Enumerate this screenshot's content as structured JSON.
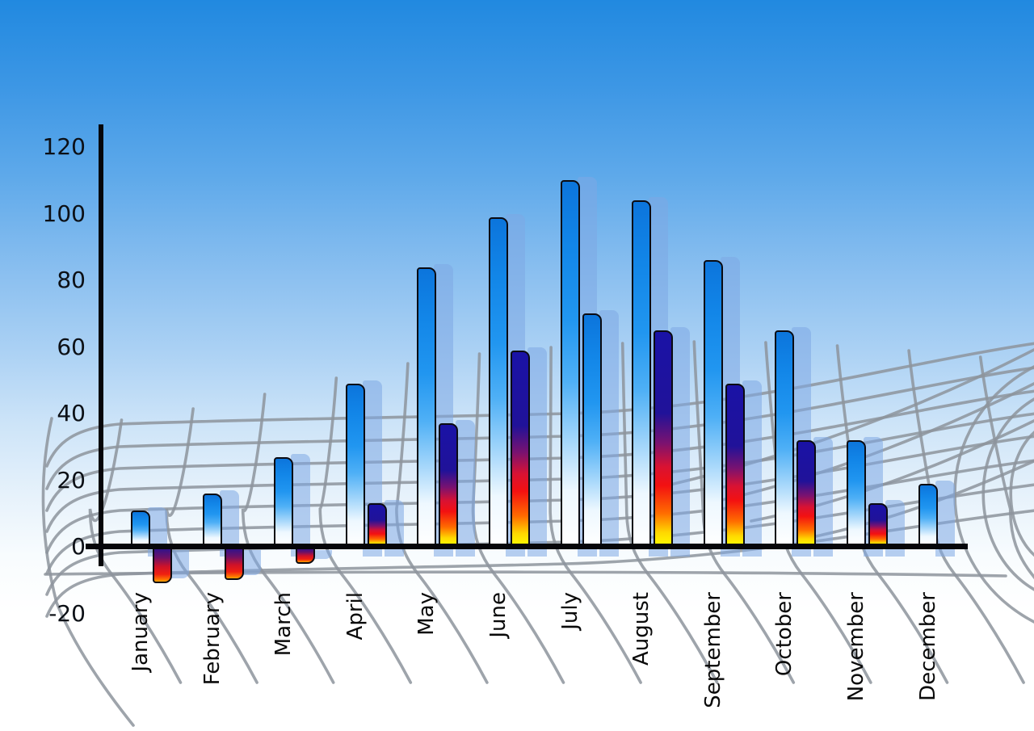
{
  "chart_data": {
    "type": "bar",
    "title": "",
    "categories": [
      "January",
      "February",
      "March",
      "April",
      "May",
      "June",
      "July",
      "August",
      "September",
      "October",
      "November",
      "December"
    ],
    "series": [
      {
        "name": "blue-gradient-bars",
        "values": [
          11,
          16,
          27,
          49,
          84,
          99,
          110,
          104,
          86,
          65,
          32,
          19
        ]
      },
      {
        "name": "multicolor-bars",
        "values": [
          -11,
          -10,
          -5,
          13,
          37,
          59,
          70,
          65,
          49,
          32,
          13,
          null
        ]
      }
    ],
    "series2_style": [
      "negative",
      "negative",
      "negative",
      "multi",
      "multi",
      "multi",
      "blue",
      "multi",
      "multi",
      "multi",
      "multi",
      null
    ],
    "ylim": [
      -20,
      120
    ],
    "yticks": [
      120,
      100,
      80,
      60,
      40,
      20,
      0,
      -20
    ],
    "xlabel": "",
    "ylabel": "",
    "grid": true,
    "legend_position": "none"
  },
  "y_axis": {
    "tick_labels": [
      "120",
      "100",
      "80",
      "60",
      "40",
      "20",
      "0",
      "-20"
    ]
  },
  "x_axis": {
    "labels": [
      "January",
      "February",
      "March",
      "April",
      "May",
      "June",
      "July",
      "August",
      "September",
      "October",
      "November",
      "December"
    ]
  },
  "colors": {
    "sky_top": "#2189e0",
    "sky_bottom": "#ffffff",
    "axis": "#06060a",
    "grid_line": "#8d949c",
    "bar_blue_top": "#0c75dc",
    "bar_blue_bottom": "#ffffff",
    "bar_multi_top": "#1a12a6",
    "bar_multi_mid": "#f31111",
    "bar_multi_bottom": "#fffa00",
    "bar_negative_top": "#2c128c",
    "bar_negative_bottom": "#ffa800",
    "echo_bar": "rgba(125,168,228,0.55)",
    "label_text": "#0a0a0a"
  }
}
